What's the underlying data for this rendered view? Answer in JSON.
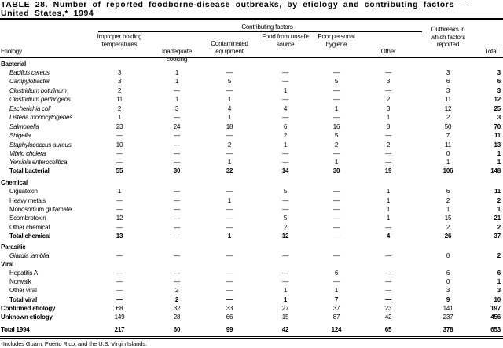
{
  "title": "TABLE 28. Number of reported foodborne-disease outbreaks, by etiology and contributing factors — United States,* 1994",
  "header": {
    "group_label": "Contributing factors",
    "etiology": "Etiology",
    "columns": [
      "Improper holding temperatures",
      "Inadequate cooking",
      "Contaminated equipment",
      "Food from unsafe source",
      "Poor personal hygiene",
      "Other",
      "Outbreaks in which factors reported",
      "Total"
    ]
  },
  "rows": [
    {
      "type": "group",
      "label": "Bacterial",
      "values": []
    },
    {
      "type": "item",
      "italic": true,
      "label": "Bacillus cereus",
      "values": [
        "3",
        "1",
        "—",
        "—",
        "—",
        "—",
        "3",
        "3"
      ]
    },
    {
      "type": "item",
      "italic": true,
      "label": "Campylobacter",
      "values": [
        "3",
        "1",
        "5",
        "—",
        "5",
        "3",
        "6",
        "6"
      ]
    },
    {
      "type": "item",
      "italic": true,
      "label": "Clostridium botulinum",
      "values": [
        "2",
        "—",
        "—",
        "1",
        "—",
        "—",
        "3",
        "3"
      ]
    },
    {
      "type": "item",
      "italic": true,
      "label": "Clostridium perfringens",
      "values": [
        "11",
        "1",
        "1",
        "—",
        "—",
        "2",
        "11",
        "12"
      ]
    },
    {
      "type": "item",
      "italic": true,
      "label": "Escherichia coli",
      "values": [
        "2",
        "3",
        "4",
        "4",
        "1",
        "3",
        "12",
        "25"
      ]
    },
    {
      "type": "item",
      "italic": true,
      "label": "Listeria monocytogenes",
      "values": [
        "1",
        "—",
        "1",
        "—",
        "—",
        "1",
        "2",
        "3"
      ]
    },
    {
      "type": "item",
      "italic": true,
      "label": "Salmonella",
      "values": [
        "23",
        "24",
        "18",
        "6",
        "16",
        "8",
        "50",
        "70"
      ]
    },
    {
      "type": "item",
      "italic": true,
      "label": "Shigella",
      "values": [
        "—",
        "—",
        "—",
        "2",
        "5",
        "—",
        "7",
        "11"
      ]
    },
    {
      "type": "item",
      "italic": true,
      "label": "Staphylococcus aureus",
      "values": [
        "10",
        "—",
        "2",
        "1",
        "2",
        "2",
        "11",
        "13"
      ]
    },
    {
      "type": "item",
      "italic": true,
      "label": "Vibrio cholera",
      "values": [
        "—",
        "—",
        "—",
        "—",
        "—",
        "—",
        "0",
        "1"
      ]
    },
    {
      "type": "item",
      "italic": true,
      "label": "Yersinia enterocolitica",
      "values": [
        "—",
        "—",
        "1",
        "—",
        "1",
        "—",
        "1",
        "1"
      ]
    },
    {
      "type": "total",
      "label": "Total bacterial",
      "values": [
        "55",
        "30",
        "32",
        "14",
        "30",
        "19",
        "106",
        "148"
      ]
    },
    {
      "type": "group",
      "label": "Chemical",
      "values": []
    },
    {
      "type": "item",
      "label": "Ciguatoxin",
      "values": [
        "1",
        "—",
        "—",
        "5",
        "—",
        "1",
        "6",
        "11"
      ]
    },
    {
      "type": "item",
      "label": "Heavy metals",
      "values": [
        "—",
        "—",
        "1",
        "—",
        "—",
        "1",
        "2",
        "2"
      ]
    },
    {
      "type": "item",
      "label": "Monosodium glutamate",
      "values": [
        "—",
        "—",
        "—",
        "—",
        "—",
        "1",
        "1",
        "1"
      ]
    },
    {
      "type": "item",
      "label": "Scombrotoxin",
      "values": [
        "12",
        "—",
        "—",
        "5",
        "—",
        "1",
        "15",
        "21"
      ]
    },
    {
      "type": "item",
      "label": "Other chemical",
      "values": [
        "—",
        "—",
        "—",
        "2",
        "—",
        "—",
        "2",
        "2"
      ]
    },
    {
      "type": "total",
      "label": "Total chemical",
      "values": [
        "13",
        "—",
        "1",
        "12",
        "—",
        "4",
        "26",
        "37"
      ]
    },
    {
      "type": "group",
      "label": "Parasitic",
      "values": []
    },
    {
      "type": "item",
      "italic": true,
      "label": "Giardia lamblia",
      "values": [
        "—",
        "—",
        "—",
        "—",
        "—",
        "—",
        "0",
        "2"
      ]
    },
    {
      "type": "group",
      "label": "Viral",
      "values": []
    },
    {
      "type": "item",
      "label": "Hepatitis A",
      "values": [
        "—",
        "—",
        "—",
        "—",
        "6",
        "—",
        "6",
        "6"
      ]
    },
    {
      "type": "item",
      "label": "Norwalk",
      "values": [
        "—",
        "—",
        "—",
        "—",
        "—",
        "—",
        "0",
        "1"
      ]
    },
    {
      "type": "item",
      "label": "Other viral",
      "values": [
        "—",
        "2",
        "—",
        "1",
        "1",
        "—",
        "3",
        "3"
      ]
    },
    {
      "type": "total",
      "label": "Total viral",
      "values": [
        "—",
        "2",
        "—",
        "1",
        "7",
        "—",
        "9",
        "10"
      ]
    },
    {
      "type": "summary",
      "label": "Confirmed etiology",
      "values": [
        "68",
        "32",
        "33",
        "27",
        "37",
        "23",
        "141",
        "197"
      ]
    },
    {
      "type": "summary",
      "label": "Unknown etiology",
      "values": [
        "149",
        "28",
        "66",
        "15",
        "87",
        "42",
        "237",
        "456"
      ]
    },
    {
      "type": "grand",
      "label": "Total 1994",
      "values": [
        "217",
        "60",
        "99",
        "42",
        "124",
        "65",
        "378",
        "653"
      ]
    }
  ],
  "footnote": "*Includes Guam, Puerto Rico, and the U.S. Virgin Islands."
}
